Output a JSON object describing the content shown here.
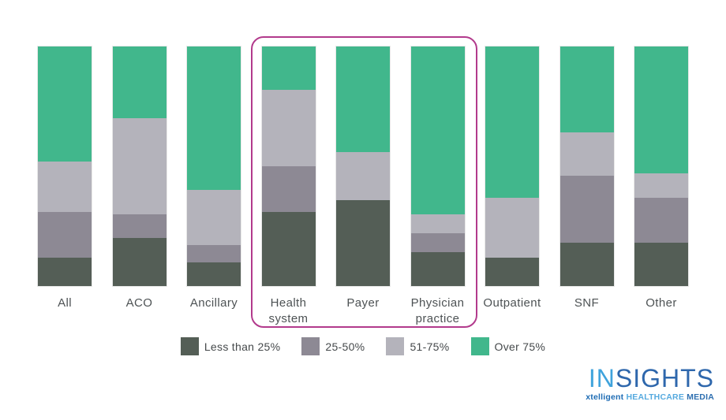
{
  "chart_data": {
    "type": "bar",
    "subtype": "stacked-percent",
    "title": "",
    "categories": [
      "All",
      "ACO",
      "Ancillary",
      "Health system",
      "Payer",
      "Physician practice",
      "Outpatient",
      "SNF",
      "Other"
    ],
    "category_label_lines": [
      [
        "All"
      ],
      [
        "ACO"
      ],
      [
        "Ancillary"
      ],
      [
        "Health",
        "system"
      ],
      [
        "Payer"
      ],
      [
        "Physician",
        "practice"
      ],
      [
        "Outpatient"
      ],
      [
        "SNF"
      ],
      [
        "Other"
      ]
    ],
    "series": [
      {
        "name": "Less than 25%",
        "color": "#545e56",
        "values": [
          12,
          20,
          10,
          31,
          36,
          14,
          12,
          18,
          18
        ]
      },
      {
        "name": "25-50%",
        "color": "#8d8994",
        "values": [
          19,
          10,
          7,
          19,
          0,
          8,
          0,
          28,
          19
        ]
      },
      {
        "name": "51-75%",
        "color": "#b4b3bb",
        "values": [
          21,
          40,
          23,
          32,
          20,
          8,
          25,
          18,
          10
        ]
      },
      {
        "name": "Over 75%",
        "color": "#41b78c",
        "values": [
          48,
          30,
          60,
          18,
          44,
          70,
          63,
          36,
          53
        ]
      }
    ],
    "stack_order": "bottom_to_top",
    "ylim": [
      0,
      100
    ],
    "unit": "percent",
    "axes_visible": false,
    "grid": false,
    "legend_position": "bottom",
    "highlighted_categories": [
      "Health system",
      "Payer",
      "Physician practice"
    ],
    "highlight_color": "#b23a8c"
  },
  "legend": {
    "items": [
      {
        "label": "Less than 25%",
        "color": "#545e56"
      },
      {
        "label": "25-50%",
        "color": "#8d8994"
      },
      {
        "label": "51-75%",
        "color": "#b4b3bb"
      },
      {
        "label": "Over 75%",
        "color": "#41b78c"
      }
    ]
  },
  "logo": {
    "name_part1": "IN",
    "name_part2": "SIGHTS",
    "tagline_part1": "xtelligent",
    "tagline_part2": "HEALTHCARE",
    "tagline_part3": "MEDIA"
  }
}
